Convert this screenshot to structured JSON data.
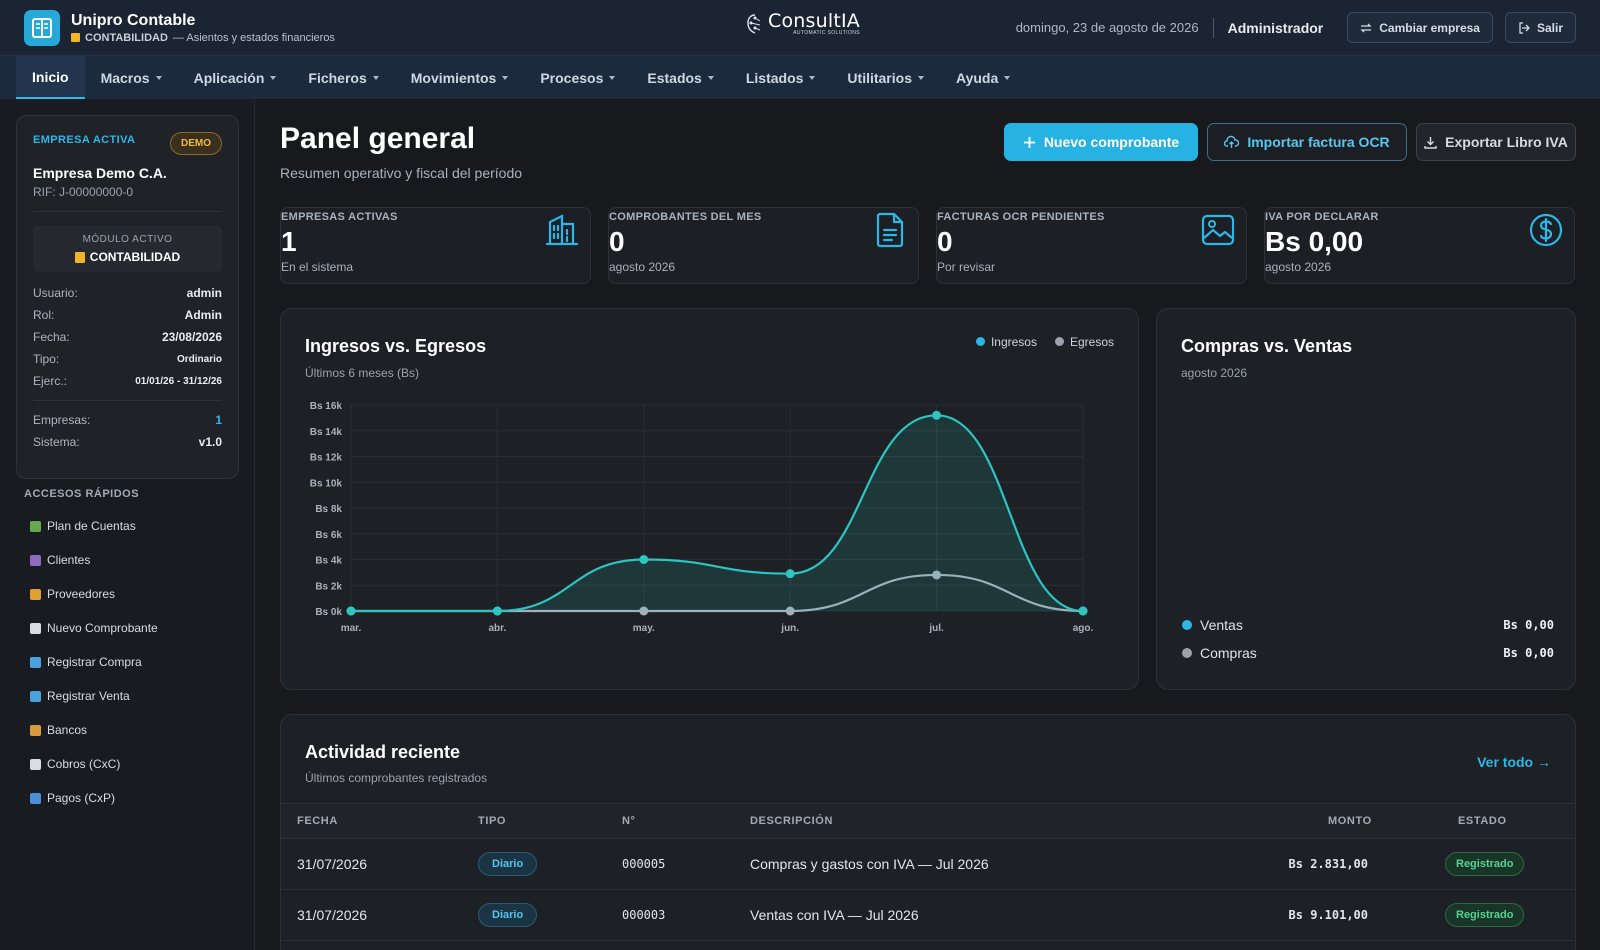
{
  "header": {
    "app_title": "Unipro Contable",
    "module": "CONTABILIDAD",
    "subtitle": "— Asientos y estados financieros",
    "brand_name": "ConsultIA",
    "brand_tagline": "AUTOMATIC SOLUTIONS",
    "date": "domingo, 23 de agosto de 2026",
    "user": "Administrador",
    "change_company_label": "Cambiar empresa",
    "logout_label": "Salir"
  },
  "nav": [
    {
      "label": "Inicio",
      "active": true,
      "dropdown": false
    },
    {
      "label": "Macros",
      "dropdown": true
    },
    {
      "label": "Aplicación",
      "dropdown": true
    },
    {
      "label": "Ficheros",
      "dropdown": true
    },
    {
      "label": "Movimientos",
      "dropdown": true
    },
    {
      "label": "Procesos",
      "dropdown": true
    },
    {
      "label": "Estados",
      "dropdown": true
    },
    {
      "label": "Listados",
      "dropdown": true
    },
    {
      "label": "Utilitarios",
      "dropdown": true
    },
    {
      "label": "Ayuda",
      "dropdown": true
    }
  ],
  "sidebar": {
    "company": {
      "kicker": "EMPRESA ACTIVA",
      "badge": "DEMO",
      "name": "Empresa Demo C.A.",
      "rif": "RIF: J-00000000-0",
      "module_label": "MÓDULO ACTIVO",
      "module_value": "CONTABILIDAD",
      "details": [
        {
          "k": "Usuario:",
          "v": "admin"
        },
        {
          "k": "Rol:",
          "v": "Admin"
        },
        {
          "k": "Fecha:",
          "v": "23/08/2026"
        },
        {
          "k": "Tipo:",
          "v": "Ordinario"
        },
        {
          "k": "Ejerc.:",
          "v": "01/01/26 - 31/12/26"
        }
      ],
      "stats": [
        {
          "k": "Empresas:",
          "v": "1"
        },
        {
          "k": "Sistema:",
          "v": "v1.0"
        }
      ]
    },
    "quick_title": "ACCESOS RÁPIDOS",
    "quick_links": [
      {
        "label": "Plan de Cuentas",
        "icon": "chart-icon",
        "color": "#6aa84f"
      },
      {
        "label": "Clientes",
        "icon": "users-icon",
        "color": "#8e6bbf"
      },
      {
        "label": "Proveedores",
        "icon": "truck-icon",
        "color": "#e0a030"
      },
      {
        "label": "Nuevo Comprobante",
        "icon": "memo-icon",
        "color": "#d9dde2"
      },
      {
        "label": "Registrar Compra",
        "icon": "cart-icon",
        "color": "#4aa3df"
      },
      {
        "label": "Registrar Venta",
        "icon": "sale-icon",
        "color": "#4aa3df"
      },
      {
        "label": "Bancos",
        "icon": "money-bag-icon",
        "color": "#d99a3c"
      },
      {
        "label": "Cobros (CxC)",
        "icon": "receipt-icon",
        "color": "#d9dde2"
      },
      {
        "label": "Pagos (CxP)",
        "icon": "card-icon",
        "color": "#4a90d9"
      }
    ]
  },
  "main": {
    "title": "Panel general",
    "subtitle": "Resumen operativo y fiscal del período",
    "actions": {
      "new_voucher": "Nuevo comprobante",
      "import_ocr": "Importar factura OCR",
      "export_iva": "Exportar Libro IVA"
    },
    "kpis": [
      {
        "label": "EMPRESAS ACTIVAS",
        "value": "1",
        "foot": "En el sistema",
        "icon": "building-icon"
      },
      {
        "label": "COMPROBANTES DEL MES",
        "value": "0",
        "foot": "agosto 2026",
        "icon": "document-icon"
      },
      {
        "label": "FACTURAS OCR PENDIENTES",
        "value": "0",
        "foot": "Por revisar",
        "icon": "image-icon"
      },
      {
        "label": "IVA POR DECLARAR",
        "value": "Bs 0,00",
        "foot": "agosto 2026",
        "icon": "dollar-icon"
      }
    ]
  },
  "income_chart": {
    "title": "Ingresos vs. Egresos",
    "subtitle": "Últimos 6 meses (Bs)"
  },
  "purchases_sales": {
    "title": "Compras vs. Ventas",
    "subtitle": "agosto 2026",
    "rows": [
      {
        "label": "Ventas",
        "amount": "Bs 0,00",
        "color": "#2db6e8"
      },
      {
        "label": "Compras",
        "amount": "Bs 0,00",
        "color": "#9aa3ad"
      }
    ]
  },
  "activity": {
    "title": "Actividad reciente",
    "subtitle": "Últimos comprobantes registrados",
    "see_all": "Ver todo →",
    "columns": [
      "FECHA",
      "TIPO",
      "N°",
      "DESCRIPCIÓN",
      "MONTO",
      "ESTADO"
    ],
    "rows": [
      {
        "fecha": "31/07/2026",
        "tipo": "Diario",
        "numero": "000005",
        "descripcion": "Compras y gastos con IVA — Jul 2026",
        "monto": "Bs 2.831,00",
        "estado": "Registrado"
      },
      {
        "fecha": "31/07/2026",
        "tipo": "Diario",
        "numero": "000003",
        "descripcion": "Ventas con IVA — Jul 2026",
        "monto": "Bs 9.101,00",
        "estado": "Registrado"
      }
    ]
  },
  "chart_data": {
    "type": "area",
    "title": "Ingresos vs. Egresos",
    "subtitle": "Últimos 6 meses (Bs)",
    "categories": [
      "mar.",
      "abr.",
      "may.",
      "jun.",
      "jul.",
      "ago."
    ],
    "series": [
      {
        "name": "Ingresos",
        "values": [
          0,
          0,
          4000,
          2900,
          15200,
          0
        ],
        "color": "#2ec4c0"
      },
      {
        "name": "Egresos",
        "values": [
          0,
          0,
          0,
          0,
          2800,
          0
        ],
        "color": "#a8b0b8"
      }
    ],
    "y_ticks": [
      "Bs 0k",
      "Bs 2k",
      "Bs 4k",
      "Bs 6k",
      "Bs 8k",
      "Bs 10k",
      "Bs 12k",
      "Bs 14k",
      "Bs 16k"
    ],
    "ylim": [
      0,
      16000
    ],
    "grid": true,
    "legend": "top-right"
  }
}
